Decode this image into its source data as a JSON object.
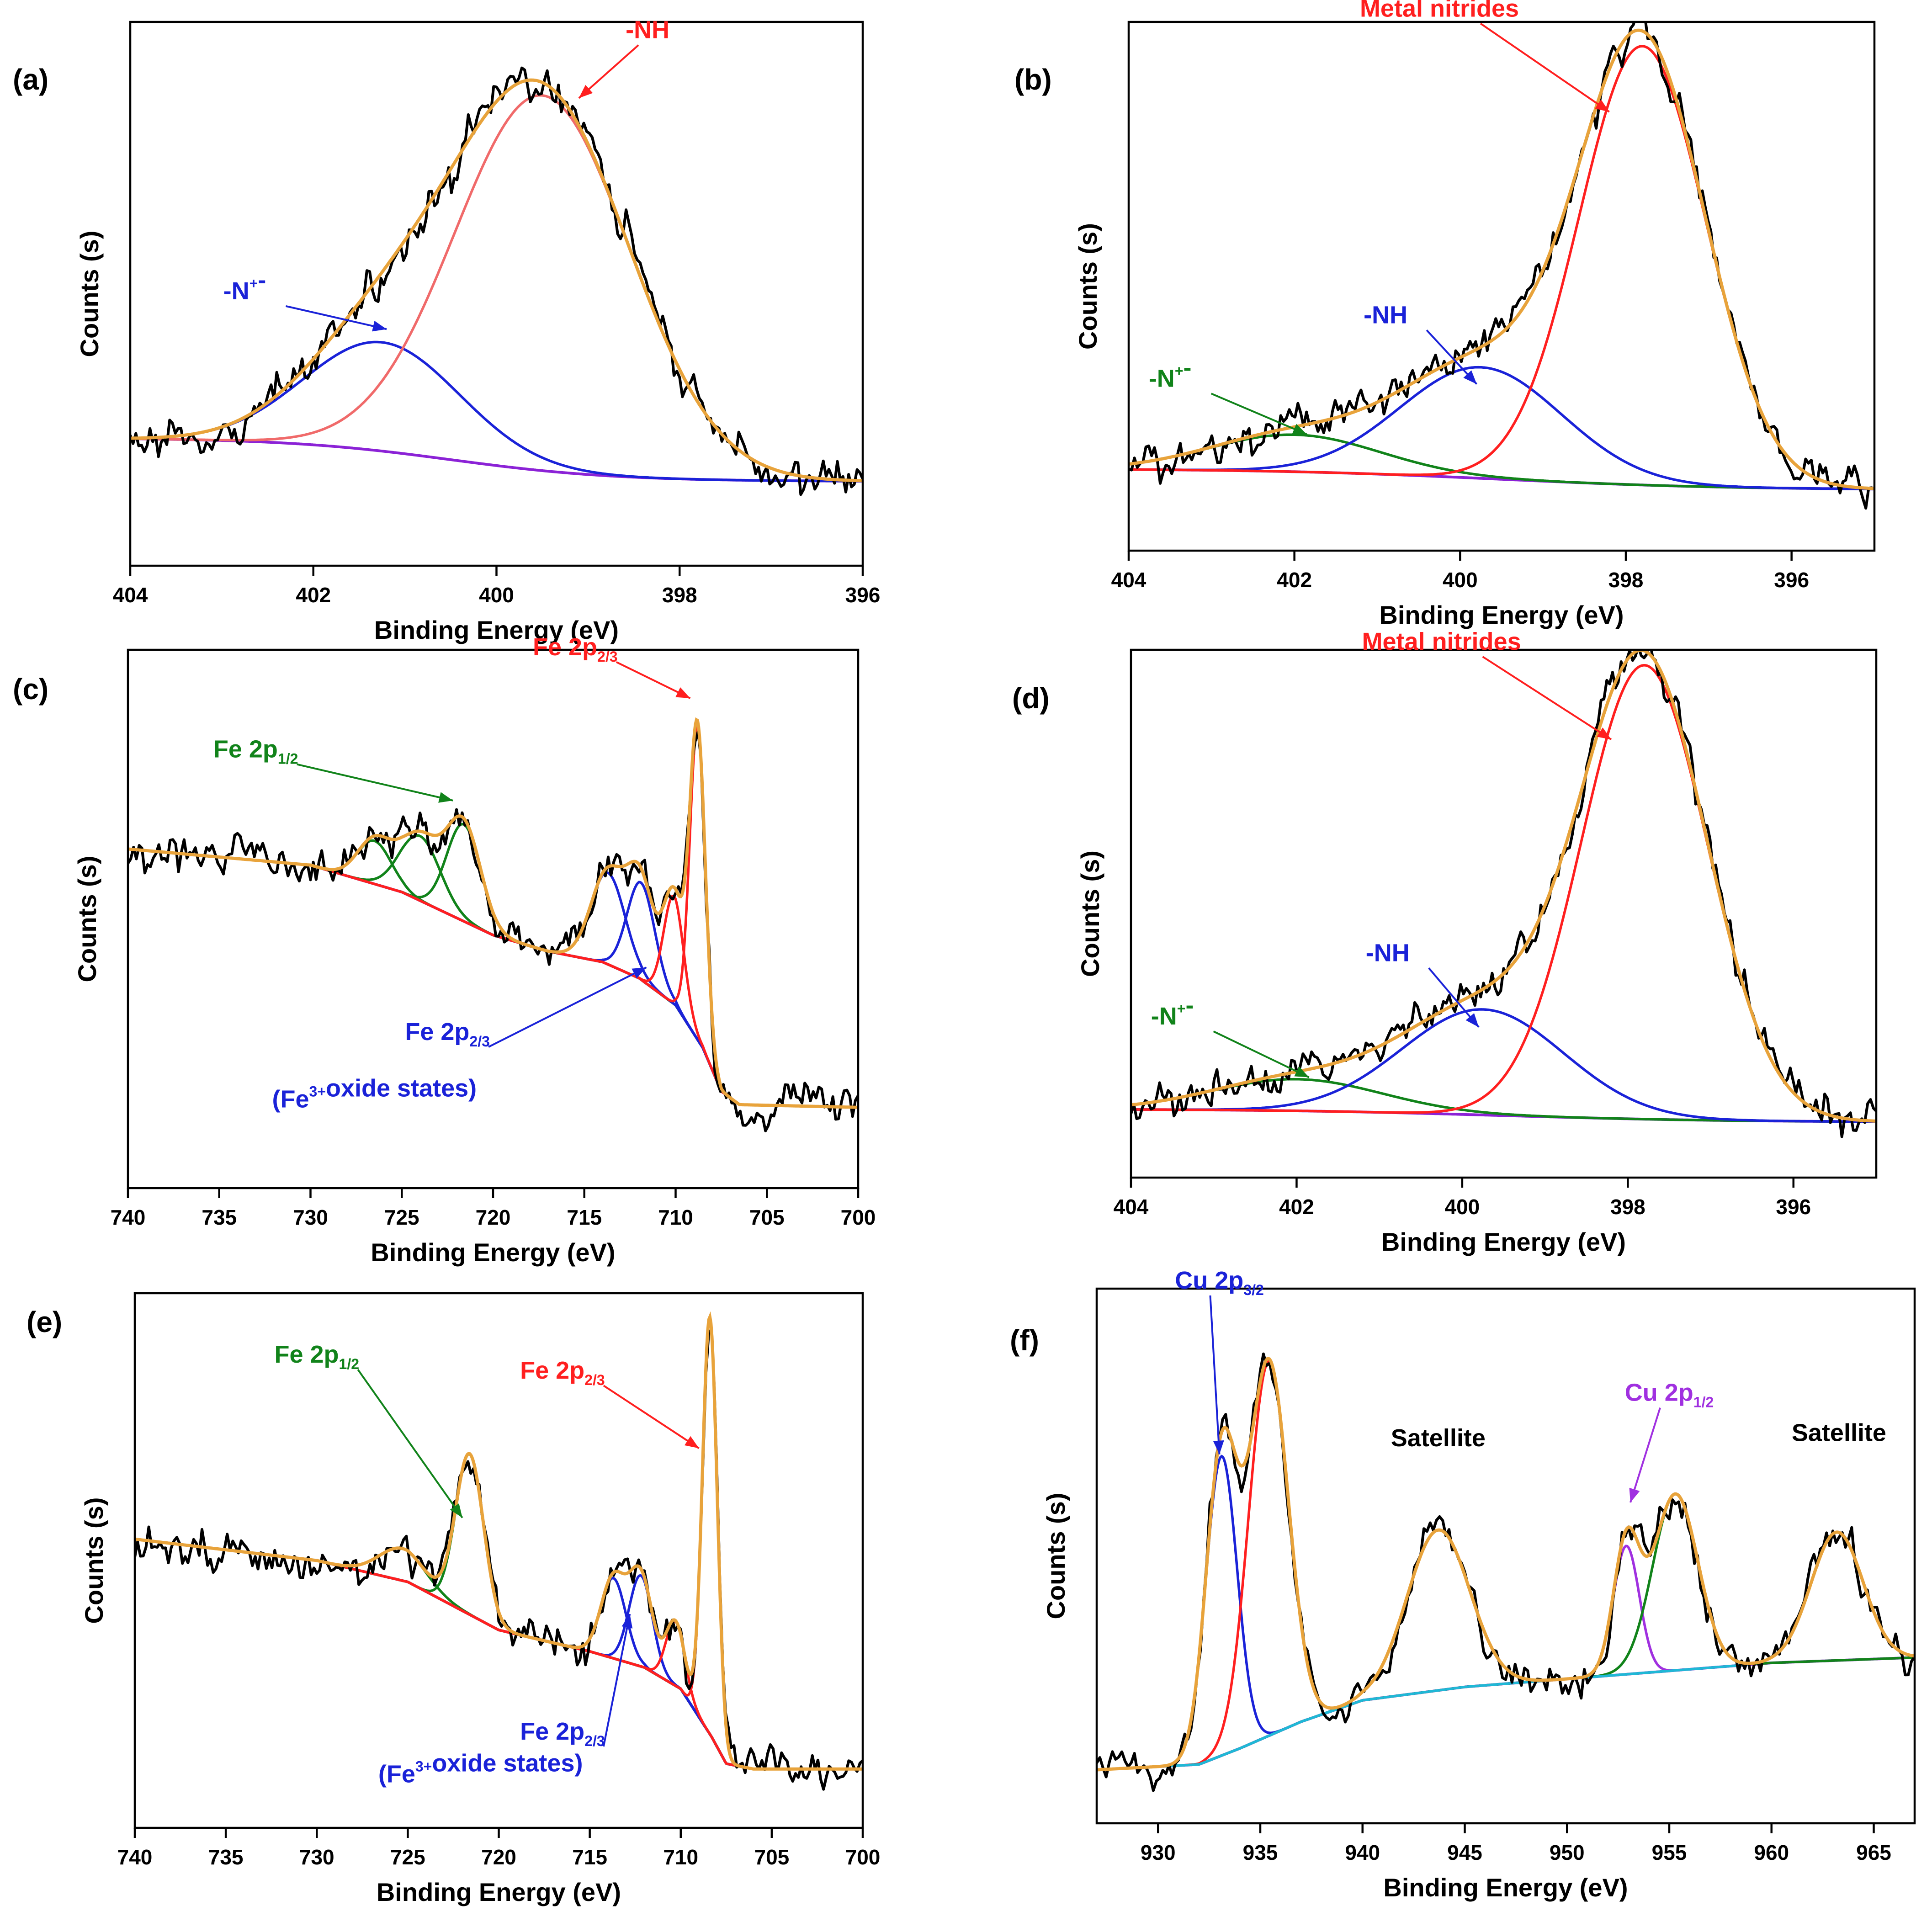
{
  "figure": {
    "panels": [
      {
        "label": "(a)",
        "xlabel": "Binding Energy (eV)",
        "ylabel": "Counts (s)"
      },
      {
        "label": "(b)",
        "xlabel": "Binding Energy (eV)",
        "ylabel": "Counts (s)"
      },
      {
        "label": "(c)",
        "xlabel": "Binding Energy (eV)",
        "ylabel": "Counts (s)"
      },
      {
        "label": "(d)",
        "xlabel": "Binding Energy (eV)",
        "ylabel": "Counts (s)"
      },
      {
        "label": "(e)",
        "xlabel": "Binding Energy (eV)",
        "ylabel": "Counts (s)"
      },
      {
        "label": "(f)",
        "xlabel": "Binding Energy (eV)",
        "ylabel": "Counts (s)"
      }
    ]
  },
  "colors": {
    "raw": "#000000",
    "envelope": "#e8a33b",
    "background": "#8b22d6",
    "background_e": "#7a1414",
    "red": "#ff1f1f",
    "red_a": "#f06a6a",
    "blue": "#1a22d8",
    "green": "#11831a",
    "cyan": "#1fb8d6",
    "purple": "#a030e0"
  },
  "chart_data": [
    {
      "type": "line",
      "panel": "(a)",
      "title": "",
      "xlabel": "Binding Energy (eV)",
      "ylabel": "Counts (s)",
      "xlim": [
        404,
        396
      ],
      "ylim": [
        0,
        1.0
      ],
      "xticks": [
        404,
        402,
        400,
        398,
        396
      ],
      "xtick_labels": [
        "404",
        "402",
        "400",
        "398",
        "396"
      ],
      "background": {
        "from": 0.235,
        "to": 0.155,
        "center": 400.5,
        "width": 0.9
      },
      "peaks": [
        {
          "name": "-N+-",
          "center": 401.25,
          "height": 0.2,
          "fwhm": 2.0,
          "color": "blue"
        },
        {
          "name": "-NH",
          "center": 399.5,
          "height": 0.69,
          "fwhm": 2.25,
          "color": "red_a"
        }
      ],
      "annotations": [
        {
          "text": "-NH",
          "sub": "",
          "sup": "",
          "color": "red",
          "text_x": 398.35,
          "text_y": 0.97,
          "arrow_x": 399.1,
          "arrow_y": 0.86
        },
        {
          "text": "-N",
          "sub": "",
          "sup": "+",
          "suffix": "-",
          "color": "blue",
          "text_x": 402.75,
          "text_y": 0.49,
          "arrow_x": 401.2,
          "arrow_y": 0.435
        }
      ]
    },
    {
      "type": "line",
      "panel": "(b)",
      "title": "",
      "xlabel": "Binding Energy (eV)",
      "ylabel": "Counts (s)",
      "xlim": [
        404,
        395
      ],
      "ylim": [
        0,
        1.0
      ],
      "xticks": [
        404,
        402,
        400,
        398,
        396
      ],
      "xtick_labels": [
        "404",
        "402",
        "400",
        "398",
        "396"
      ],
      "background": {
        "from": 0.155,
        "to": 0.115,
        "center": 399.5,
        "width": 1.4
      },
      "peaks": [
        {
          "name": "-N+-",
          "center": 402.0,
          "height": 0.07,
          "fwhm": 2.4,
          "color": "green"
        },
        {
          "name": "-NH",
          "center": 399.75,
          "height": 0.21,
          "fwhm": 2.3,
          "color": "blue"
        },
        {
          "name": "Metal nitrides",
          "center": 397.8,
          "height": 0.83,
          "fwhm": 1.8,
          "color": "red"
        }
      ],
      "annotations": [
        {
          "text": "Metal nitrides",
          "sub": "",
          "sup": "",
          "color": "red",
          "text_x": 400.25,
          "text_y": 1.01,
          "arrow_x": 398.2,
          "arrow_y": 0.83
        },
        {
          "text": "-NH",
          "sub": "",
          "sup": "",
          "color": "blue",
          "text_x": 400.9,
          "text_y": 0.43,
          "arrow_x": 399.8,
          "arrow_y": 0.315
        },
        {
          "text": "-N",
          "sub": "",
          "sup": "+",
          "suffix": "-",
          "color": "green",
          "text_x": 403.5,
          "text_y": 0.31,
          "arrow_x": 401.85,
          "arrow_y": 0.22
        }
      ]
    },
    {
      "type": "line",
      "panel": "(c)",
      "title": "",
      "xlabel": "Binding Energy (eV)",
      "ylabel": "Counts (s)",
      "xlim": [
        740,
        700
      ],
      "ylim": [
        0,
        1.0
      ],
      "xticks": [
        740,
        735,
        730,
        725,
        720,
        715,
        710,
        705,
        700
      ],
      "xtick_labels": [
        "740",
        "735",
        "730",
        "725",
        "720",
        "715",
        "710",
        "705",
        "700"
      ],
      "background_points": [
        [
          740,
          0.63
        ],
        [
          730,
          0.6
        ],
        [
          725,
          0.55
        ],
        [
          720,
          0.47
        ],
        [
          717,
          0.44
        ],
        [
          714,
          0.42
        ],
        [
          712,
          0.39
        ],
        [
          710,
          0.34
        ],
        [
          708.5,
          0.26
        ],
        [
          707.5,
          0.18
        ],
        [
          706.5,
          0.155
        ],
        [
          700,
          0.15
        ]
      ],
      "peaks": [
        {
          "name": "Fe 2p1/2 a",
          "center": 726.5,
          "height": 0.08,
          "fwhm": 2.2,
          "color": "green"
        },
        {
          "name": "Fe 2p1/2 b",
          "center": 724.0,
          "height": 0.12,
          "fwhm": 2.6,
          "color": "green"
        },
        {
          "name": "Fe 2p1/2 c",
          "center": 721.6,
          "height": 0.18,
          "fwhm": 2.2,
          "color": "green"
        },
        {
          "name": "Fe 2p2/3 (Fe3+) a",
          "center": 713.7,
          "height": 0.17,
          "fwhm": 2.2,
          "color": "blue"
        },
        {
          "name": "Fe 2p2/3 (Fe3+) b",
          "center": 711.9,
          "height": 0.18,
          "fwhm": 1.8,
          "color": "blue"
        },
        {
          "name": "Fe 2p2/3 c",
          "center": 710.1,
          "height": 0.2,
          "fwhm": 1.3,
          "color": "red"
        },
        {
          "name": "Fe 2p2/3",
          "center": 708.8,
          "height": 0.58,
          "fwhm": 1.0,
          "color": "red"
        }
      ],
      "annotations": [
        {
          "text": "Fe 2p",
          "sub": "2/3",
          "sup": "",
          "color": "red",
          "text_x": 715.5,
          "text_y": 0.99,
          "arrow_x": 709.2,
          "arrow_y": 0.91
        },
        {
          "text": "Fe 2p",
          "sub": "1/2",
          "sup": "",
          "color": "green",
          "text_x": 733.0,
          "text_y": 0.8,
          "arrow_x": 722.2,
          "arrow_y": 0.72
        },
        {
          "text": "Fe 2p",
          "sub": "2/3",
          "sup": "",
          "color": "blue",
          "text_x": 722.5,
          "text_y": 0.275,
          "arrow_x": 711.6,
          "arrow_y": 0.41
        },
        {
          "text": "(Fe",
          "sub": "",
          "sup": "3+",
          "suffix": "oxide states)",
          "color": "blue",
          "text_x": 726.5,
          "text_y": 0.15,
          "arrow_x": null,
          "arrow_y": null
        }
      ]
    },
    {
      "type": "line",
      "panel": "(d)",
      "title": "",
      "xlabel": "Binding Energy (eV)",
      "ylabel": "Counts (s)",
      "xlim": [
        404,
        395
      ],
      "ylim": [
        0,
        1.0
      ],
      "xticks": [
        404,
        402,
        400,
        398,
        396
      ],
      "xtick_labels": [
        "404",
        "402",
        "400",
        "398",
        "396"
      ],
      "background": {
        "from": 0.13,
        "to": 0.105,
        "center": 399.5,
        "width": 1.4
      },
      "peaks": [
        {
          "name": "-N+-",
          "center": 402.0,
          "height": 0.06,
          "fwhm": 2.4,
          "color": "green"
        },
        {
          "name": "-NH",
          "center": 399.75,
          "height": 0.2,
          "fwhm": 2.3,
          "color": "blue"
        },
        {
          "name": "Metal nitrides",
          "center": 397.8,
          "height": 0.86,
          "fwhm": 1.8,
          "color": "red"
        }
      ],
      "annotations": [
        {
          "text": "Metal nitrides",
          "sub": "",
          "sup": "",
          "color": "red",
          "text_x": 400.25,
          "text_y": 1.0,
          "arrow_x": 398.2,
          "arrow_y": 0.83
        },
        {
          "text": "-NH",
          "sub": "",
          "sup": "",
          "color": "blue",
          "text_x": 400.9,
          "text_y": 0.41,
          "arrow_x": 399.8,
          "arrow_y": 0.285
        },
        {
          "text": "-N",
          "sub": "",
          "sup": "+",
          "suffix": "-",
          "color": "green",
          "text_x": 403.5,
          "text_y": 0.29,
          "arrow_x": 401.85,
          "arrow_y": 0.19
        }
      ]
    },
    {
      "type": "line",
      "panel": "(e)",
      "title": "",
      "xlabel": "Binding Energy (eV)",
      "ylabel": "Counts (s)",
      "xlim": [
        740,
        700
      ],
      "ylim": [
        0,
        1.0
      ],
      "xticks": [
        740,
        735,
        730,
        725,
        720,
        715,
        710,
        705,
        700
      ],
      "xtick_labels": [
        "740",
        "735",
        "730",
        "725",
        "720",
        "715",
        "710",
        "705",
        "700"
      ],
      "background_points": [
        [
          740,
          0.54
        ],
        [
          730,
          0.5
        ],
        [
          725,
          0.46
        ],
        [
          720,
          0.37
        ],
        [
          715,
          0.33
        ],
        [
          712,
          0.3
        ],
        [
          710,
          0.26
        ],
        [
          708.3,
          0.17
        ],
        [
          707.5,
          0.12
        ],
        [
          706,
          0.11
        ],
        [
          700,
          0.11
        ]
      ],
      "peaks": [
        {
          "name": "Fe 2p1/2 a",
          "center": 725.3,
          "height": 0.06,
          "fwhm": 3.0,
          "color": "green"
        },
        {
          "name": "Fe 2p1/2",
          "center": 721.6,
          "height": 0.3,
          "fwhm": 1.8,
          "color": "green"
        },
        {
          "name": "Fe 2p2/3 (Fe3+) a",
          "center": 713.7,
          "height": 0.15,
          "fwhm": 1.6,
          "color": "blue"
        },
        {
          "name": "Fe 2p2/3 (Fe3+) b",
          "center": 712.2,
          "height": 0.17,
          "fwhm": 1.5,
          "color": "blue"
        },
        {
          "name": "Fe 2p2/3 c",
          "center": 710.3,
          "height": 0.12,
          "fwhm": 1.2,
          "color": "red"
        },
        {
          "name": "Fe 2p2/3",
          "center": 708.4,
          "height": 0.78,
          "fwhm": 0.95,
          "color": "red"
        }
      ],
      "annotations": [
        {
          "text": "Fe 2p",
          "sub": "1/2",
          "sup": "",
          "color": "green",
          "text_x": 730.0,
          "text_y": 0.87,
          "arrow_x": 722.0,
          "arrow_y": 0.58
        },
        {
          "text": "Fe 2p",
          "sub": "2/3",
          "sup": "",
          "color": "red",
          "text_x": 716.5,
          "text_y": 0.84,
          "arrow_x": 709.0,
          "arrow_y": 0.71
        },
        {
          "text": "Fe 2p",
          "sub": "2/3",
          "sup": "",
          "color": "blue",
          "text_x": 716.5,
          "text_y": 0.165,
          "arrow_x": 712.8,
          "arrow_y": 0.4
        },
        {
          "text": "(Fe",
          "sub": "",
          "sup": "3+",
          "suffix": "oxide states)",
          "color": "blue",
          "text_x": 721.0,
          "text_y": 0.085,
          "arrow_x": null,
          "arrow_y": null
        }
      ]
    },
    {
      "type": "line",
      "panel": "(f)",
      "title": "",
      "xlabel": "Binding Energy (eV)",
      "ylabel": "Counts (s)",
      "xlim": [
        927,
        967
      ],
      "ylim": [
        0,
        1.0
      ],
      "xticks": [
        930,
        935,
        940,
        945,
        950,
        955,
        960,
        965
      ],
      "xtick_labels": [
        "930",
        "935",
        "940",
        "945",
        "950",
        "955",
        "960",
        "965"
      ],
      "background_points": [
        [
          927,
          0.1
        ],
        [
          932,
          0.11
        ],
        [
          934,
          0.14
        ],
        [
          937,
          0.19
        ],
        [
          940,
          0.23
        ],
        [
          945,
          0.255
        ],
        [
          950,
          0.27
        ],
        [
          955,
          0.285
        ],
        [
          960,
          0.3
        ],
        [
          967,
          0.31
        ]
      ],
      "peaks": [
        {
          "name": "Cu 2p3/2",
          "center": 933.1,
          "height": 0.56,
          "fwhm": 1.8,
          "color": "blue"
        },
        {
          "name": "Cu 2p3/2 b",
          "center": 935.4,
          "height": 0.7,
          "fwhm": 2.3,
          "color": "red"
        },
        {
          "name": "Satellite",
          "center": 943.7,
          "height": 0.3,
          "fwhm": 3.6,
          "color": "cyan"
        },
        {
          "name": "Cu 2p1/2",
          "center": 952.9,
          "height": 0.24,
          "fwhm": 1.5,
          "color": "purple"
        },
        {
          "name": "Cu 2p1/2 b",
          "center": 955.3,
          "height": 0.33,
          "fwhm": 2.6,
          "color": "green"
        },
        {
          "name": "Satellite 2",
          "center": 963.2,
          "height": 0.24,
          "fwhm": 3.0,
          "color": "cyan"
        }
      ],
      "annotations": [
        {
          "text": "Cu 2p",
          "sub": "3/2",
          "sup": "",
          "color": "blue",
          "text_x": 933.0,
          "text_y": 1.0,
          "arrow_x": 933.0,
          "arrow_y": 0.69
        },
        {
          "text": "Satellite",
          "sub": "",
          "sup": "",
          "color": "black",
          "text_x": 943.7,
          "text_y": 0.705,
          "arrow_x": null,
          "arrow_y": null
        },
        {
          "text": "Cu 2p",
          "sub": "1/2",
          "sup": "",
          "color": "purple",
          "text_x": 955.0,
          "text_y": 0.79,
          "arrow_x": 953.1,
          "arrow_y": 0.6
        },
        {
          "text": "Satellite",
          "sub": "",
          "sup": "",
          "color": "black",
          "text_x": 963.3,
          "text_y": 0.715,
          "arrow_x": null,
          "arrow_y": null
        }
      ]
    }
  ]
}
